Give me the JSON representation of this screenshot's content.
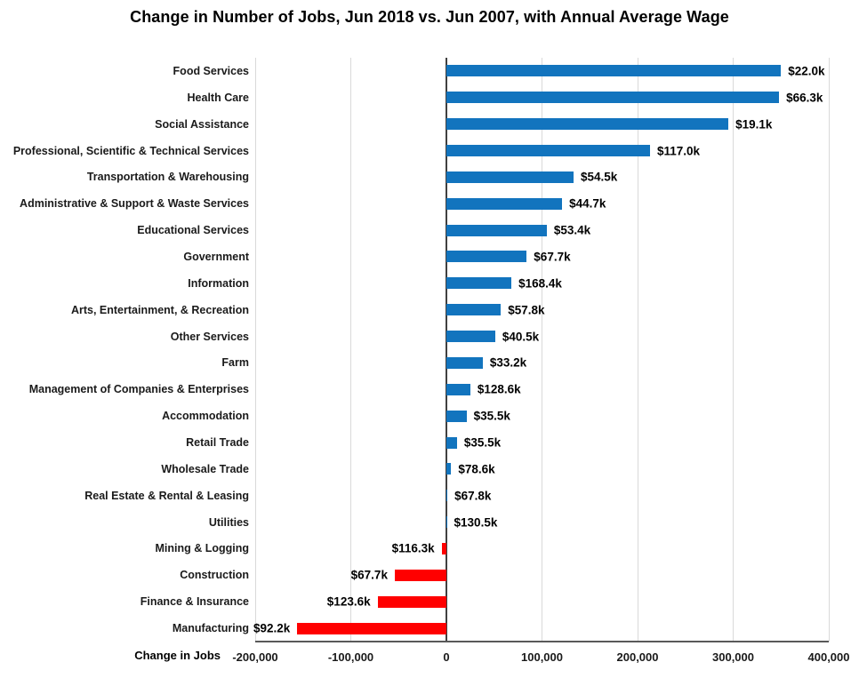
{
  "title": "Change in Number of Jobs, Jun 2018 vs. Jun 2007, with Annual Average Wage",
  "colors": {
    "positive_bar": "#1274BE",
    "negative_bar": "#FF0000",
    "gridline": "#D9D9D9",
    "zero_line": "#404040",
    "axis_line": "#595959",
    "text": "#000000"
  },
  "chart_data": {
    "type": "bar",
    "orientation": "horizontal",
    "title": "Change in Number of Jobs, Jun 2018 vs. Jun 2007, with Annual Average Wage",
    "xlabel": "Change in Jobs",
    "ylabel": "",
    "xlim": [
      -200000,
      400000
    ],
    "grid": true,
    "x_ticks": [
      {
        "value": -200000,
        "label": "-200,000"
      },
      {
        "value": -100000,
        "label": "-100,000"
      },
      {
        "value": 0,
        "label": "0"
      },
      {
        "value": 100000,
        "label": "100,000"
      },
      {
        "value": 200000,
        "label": "200,000"
      },
      {
        "value": 300000,
        "label": "300,000"
      },
      {
        "value": 400000,
        "label": "400,000"
      }
    ],
    "series_note": "values = estimated change in number of jobs (read from gridlines); wage = annual average wage label shown at bar end",
    "rows": [
      {
        "category": "Food Services",
        "value": 350000,
        "wage": "$22.0k"
      },
      {
        "category": "Health Care",
        "value": 348000,
        "wage": "$66.3k"
      },
      {
        "category": "Social Assistance",
        "value": 295000,
        "wage": "$19.1k"
      },
      {
        "category": "Professional, Scientific & Technical Services",
        "value": 213000,
        "wage": "$117.0k"
      },
      {
        "category": "Transportation & Warehousing",
        "value": 133000,
        "wage": "$54.5k"
      },
      {
        "category": "Administrative & Support & Waste Services",
        "value": 121000,
        "wage": "$44.7k"
      },
      {
        "category": "Educational Services",
        "value": 105000,
        "wage": "$53.4k"
      },
      {
        "category": "Government",
        "value": 84000,
        "wage": "$67.7k"
      },
      {
        "category": "Information",
        "value": 68000,
        "wage": "$168.4k"
      },
      {
        "category": "Arts, Entertainment, & Recreation",
        "value": 57000,
        "wage": "$57.8k"
      },
      {
        "category": "Other Services",
        "value": 51000,
        "wage": "$40.5k"
      },
      {
        "category": "Farm",
        "value": 38000,
        "wage": "$33.2k"
      },
      {
        "category": "Management of Companies & Enterprises",
        "value": 25000,
        "wage": "$128.6k"
      },
      {
        "category": "Accommodation",
        "value": 21000,
        "wage": "$35.5k"
      },
      {
        "category": "Retail Trade",
        "value": 11000,
        "wage": "$35.5k"
      },
      {
        "category": "Wholesale Trade",
        "value": 5000,
        "wage": "$78.6k"
      },
      {
        "category": "Real Estate & Rental & Leasing",
        "value": 1000,
        "wage": "$67.8k"
      },
      {
        "category": "Utilities",
        "value": 500,
        "wage": "$130.5k"
      },
      {
        "category": "Mining & Logging",
        "value": -5000,
        "wage": "$116.3k"
      },
      {
        "category": "Construction",
        "value": -54000,
        "wage": "$67.7k"
      },
      {
        "category": "Finance & Insurance",
        "value": -72000,
        "wage": "$123.6k"
      },
      {
        "category": "Manufacturing",
        "value": -156000,
        "wage": "$92.2k"
      }
    ]
  }
}
